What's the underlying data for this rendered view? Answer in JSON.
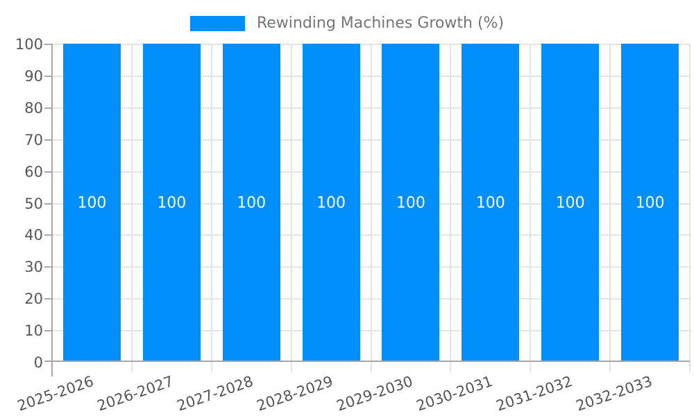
{
  "chart_data": {
    "type": "bar",
    "title": "Rewinding Machines Growth (%)",
    "categories": [
      "2025-2026",
      "2026-2027",
      "2027-2028",
      "2028-2029",
      "2029-2030",
      "2030-2031",
      "2031-2032",
      "2032-2033"
    ],
    "values": [
      100,
      100,
      100,
      100,
      100,
      100,
      100,
      100
    ],
    "data_labels": [
      "100",
      "100",
      "100",
      "100",
      "100",
      "100",
      "100",
      "100"
    ],
    "xlabel": "",
    "ylabel": "",
    "ylim": [
      0,
      100
    ],
    "yticks": [
      0,
      10,
      20,
      30,
      40,
      50,
      60,
      70,
      80,
      90,
      100
    ],
    "grid": true,
    "legend_position": "top",
    "x_label_rotation_deg": -19,
    "colors": {
      "bar": "#008FFB",
      "grid_line": "#e4e4e4",
      "axis_line": "#a8a8a8",
      "axis_label": "#565656",
      "legend_label": "#757575",
      "data_label": "#ffffff",
      "background": "#ffffff"
    }
  }
}
